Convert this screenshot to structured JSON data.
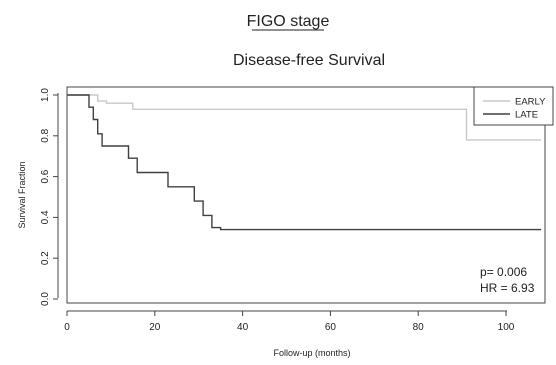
{
  "figure": {
    "heading": "FIGO stage",
    "title": "Disease-free Survival"
  },
  "stats": {
    "p_value": "p= 0.006",
    "hazard_ratio": "HR = 6.93"
  },
  "chart_data": {
    "type": "line",
    "subtype": "kaplan-meier step plot",
    "title": "Disease-free Survival",
    "xlabel": "Follow-up (months)",
    "ylabel": "Survival Fraction",
    "xlim": [
      0,
      110
    ],
    "ylim": [
      0.0,
      1.0
    ],
    "x_ticks": [
      0,
      20,
      40,
      60,
      80,
      100
    ],
    "y_ticks": [
      0.0,
      0.2,
      0.4,
      0.6,
      0.8,
      1.0
    ],
    "x_tick_labels": [
      "0",
      "20",
      "40",
      "60",
      "80",
      "100"
    ],
    "y_tick_labels": [
      "0.0",
      "0.2",
      "0.4",
      "0.6",
      "0.8",
      "1.0"
    ],
    "grid": false,
    "legend_position": "top-right",
    "series": [
      {
        "name": "EARLY",
        "color": "#c8c8c8",
        "x": [
          0,
          7,
          7,
          9,
          9,
          15,
          15,
          91,
          91,
          108
        ],
        "y": [
          1.0,
          1.0,
          0.97,
          0.97,
          0.96,
          0.96,
          0.93,
          0.93,
          0.78,
          0.78
        ]
      },
      {
        "name": "LATE",
        "color": "#404040",
        "x": [
          0,
          5,
          5,
          6,
          6,
          7,
          7,
          8,
          8,
          14,
          14,
          16,
          16,
          23,
          23,
          29,
          29,
          31,
          31,
          33,
          33,
          35,
          35,
          108
        ],
        "y": [
          1.0,
          1.0,
          0.94,
          0.94,
          0.88,
          0.88,
          0.81,
          0.81,
          0.75,
          0.75,
          0.69,
          0.69,
          0.62,
          0.62,
          0.55,
          0.55,
          0.48,
          0.48,
          0.41,
          0.41,
          0.35,
          0.35,
          0.34,
          0.34
        ]
      }
    ]
  }
}
